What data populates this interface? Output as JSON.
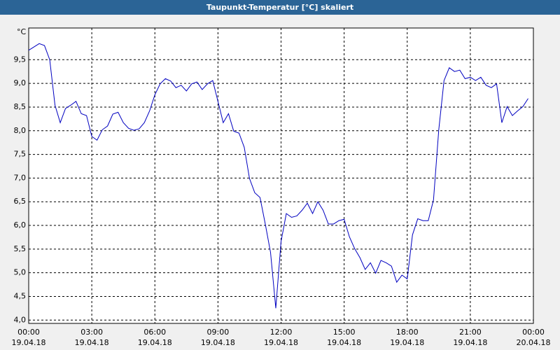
{
  "chart_data": {
    "type": "line",
    "title": "Taupunkt-Temperatur [°C] skaliert",
    "y_unit": "°C",
    "x": [
      0,
      0.25,
      0.5,
      0.75,
      1,
      1.25,
      1.5,
      1.75,
      2,
      2.25,
      2.5,
      2.75,
      3,
      3.25,
      3.5,
      3.75,
      4,
      4.25,
      4.5,
      4.75,
      5,
      5.25,
      5.5,
      5.75,
      6,
      6.25,
      6.5,
      6.75,
      7,
      7.25,
      7.5,
      7.75,
      8,
      8.25,
      8.5,
      8.75,
      9,
      9.25,
      9.5,
      9.75,
      10,
      10.25,
      10.5,
      10.75,
      11,
      11.25,
      11.5,
      11.75,
      12,
      12.25,
      12.5,
      12.75,
      13,
      13.25,
      13.5,
      13.75,
      14,
      14.25,
      14.5,
      14.75,
      15,
      15.25,
      15.5,
      15.75,
      16,
      16.25,
      16.5,
      16.75,
      17,
      17.25,
      17.5,
      17.75,
      18,
      18.25,
      18.5,
      18.75,
      19,
      19.25,
      19.5,
      19.75,
      20,
      20.25,
      20.5,
      20.75,
      21,
      21.25,
      21.5,
      21.75,
      22,
      22.25,
      22.5,
      22.75,
      23,
      23.25,
      23.5,
      23.75
    ],
    "values": [
      9.7,
      9.77,
      9.84,
      9.8,
      9.5,
      8.54,
      8.17,
      8.47,
      8.54,
      8.62,
      8.36,
      8.32,
      7.88,
      7.8,
      8.02,
      8.1,
      8.35,
      8.39,
      8.17,
      8.05,
      8.01,
      8.04,
      8.17,
      8.42,
      8.76,
      8.99,
      9.1,
      9.05,
      8.91,
      8.96,
      8.84,
      8.99,
      9.03,
      8.87,
      8.99,
      9.06,
      8.62,
      8.17,
      8.36,
      7.99,
      7.95,
      7.65,
      6.99,
      6.69,
      6.59,
      6.03,
      5.43,
      4.25,
      5.66,
      6.25,
      6.17,
      6.2,
      6.32,
      6.47,
      6.25,
      6.5,
      6.32,
      6.03,
      6.03,
      6.1,
      6.13,
      5.76,
      5.51,
      5.32,
      5.07,
      5.21,
      4.99,
      5.26,
      5.21,
      5.14,
      4.8,
      4.95,
      4.87,
      5.8,
      6.14,
      6.1,
      6.1,
      6.54,
      8.02,
      9.06,
      9.33,
      9.25,
      9.28,
      9.1,
      9.13,
      9.06,
      9.13,
      8.96,
      8.91,
      8.99,
      8.17,
      8.51,
      8.32,
      8.42,
      8.51,
      8.68
    ],
    "color": "#0000c0",
    "xlim": [
      0,
      24
    ],
    "ylim": [
      3.93,
      10.17
    ],
    "xticks": [
      {
        "value": 0,
        "label": "00:00"
      },
      {
        "value": 3,
        "label": "03:00"
      },
      {
        "value": 6,
        "label": "06:00"
      },
      {
        "value": 9,
        "label": "09:00"
      },
      {
        "value": 12,
        "label": "12:00"
      },
      {
        "value": 15,
        "label": "15:00"
      },
      {
        "value": 18,
        "label": "18:00"
      },
      {
        "value": 21,
        "label": "21:00"
      },
      {
        "value": 24,
        "label": "00:00"
      }
    ],
    "xtick_dates": [
      "19.04.18",
      "19.04.18",
      "19.04.18",
      "19.04.18",
      "19.04.18",
      "19.04.18",
      "19.04.18",
      "19.04.18",
      "20.04.18"
    ],
    "yticks": [
      {
        "value": 4,
        "label": "4,0"
      },
      {
        "value": 4.5,
        "label": "4,5"
      },
      {
        "value": 5,
        "label": "5,0"
      },
      {
        "value": 5.5,
        "label": "5,5"
      },
      {
        "value": 6,
        "label": "6,0"
      },
      {
        "value": 6.5,
        "label": "6,5"
      },
      {
        "value": 7,
        "label": "7,0"
      },
      {
        "value": 7.5,
        "label": "7,5"
      },
      {
        "value": 8,
        "label": "8,0"
      },
      {
        "value": 8.5,
        "label": "8,5"
      },
      {
        "value": 9,
        "label": "9,0"
      },
      {
        "value": 9.5,
        "label": "9,5"
      }
    ],
    "grid": true
  }
}
